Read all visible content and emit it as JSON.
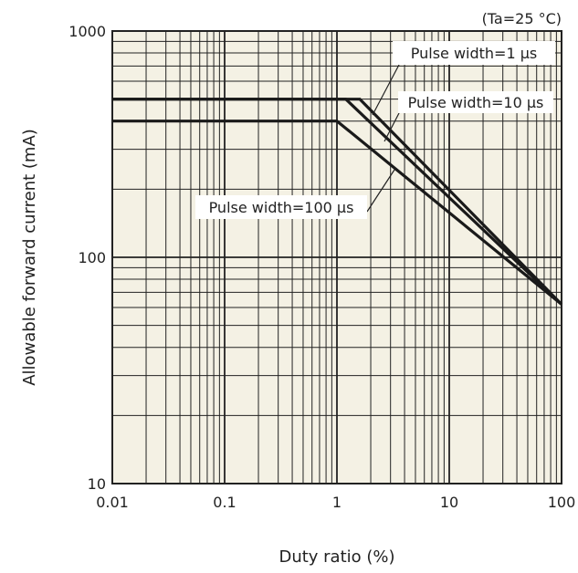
{
  "chart_data": {
    "type": "line",
    "xlabel": "Duty ratio (%)",
    "ylabel": "Allowable forward current (mA)",
    "condition_note": "(Ta=25 °C)",
    "x_scale": "log",
    "y_scale": "log",
    "xlim": [
      0.01,
      100
    ],
    "ylim": [
      10,
      1000
    ],
    "x_ticks": [
      "0.01",
      "0.1",
      "1",
      "10",
      "100"
    ],
    "y_ticks": [
      "10",
      "100",
      "1000"
    ],
    "grid": true,
    "series": [
      {
        "name": "Pulse width=1 µs",
        "x": [
          0.01,
          1.6,
          100
        ],
        "y": [
          500,
          500,
          62
        ]
      },
      {
        "name": "Pulse width=10 µs",
        "x": [
          0.01,
          1.2,
          100
        ],
        "y": [
          500,
          500,
          62
        ]
      },
      {
        "name": "Pulse width=100 µs",
        "x": [
          0.01,
          1.0,
          100
        ],
        "y": [
          400,
          400,
          62
        ]
      }
    ]
  },
  "colors": {
    "plot_background": "#f4f1e4",
    "grid": "#222222",
    "lines": "#1a1a1a"
  }
}
